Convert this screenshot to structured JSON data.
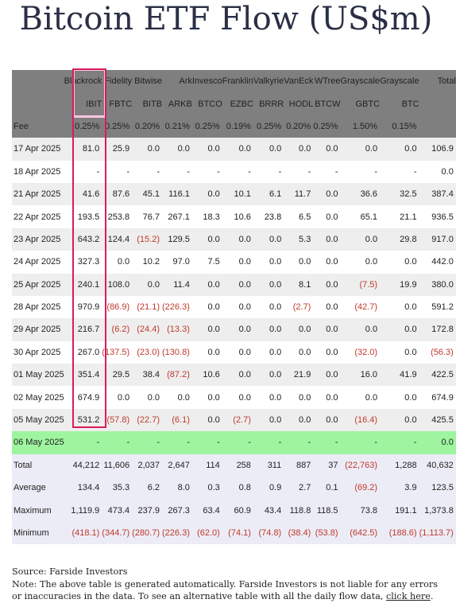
{
  "title": "Bitcoin ETF Flow (US$m)",
  "chart_data": {
    "type": "table",
    "issuers": [
      "Blackrock",
      "Fidelity",
      "Bitwise",
      "Ark",
      "Invesco",
      "Franklin",
      "Valkyrie",
      "VanEck",
      "WTree",
      "Grayscale",
      "Grayscale"
    ],
    "total_header": "Total",
    "tickers": [
      "IBIT",
      "FBTC",
      "BITB",
      "ARKB",
      "BTCO",
      "EZBC",
      "BRRR",
      "HODL",
      "BTCW",
      "GBTC",
      "BTC"
    ],
    "fee_label": "Fee",
    "fees": [
      "0.25%",
      "0.25%",
      "0.20%",
      "0.21%",
      "0.25%",
      "0.19%",
      "0.25%",
      "0.20%",
      "0.25%",
      "1.50%",
      "0.15%"
    ],
    "rows": [
      {
        "date": "17 Apr 2025",
        "values": [
          "81.0",
          "25.9",
          "0.0",
          "0.0",
          "0.0",
          "0.0",
          "0.0",
          "0.0",
          "0.0",
          "0.0",
          "0.0"
        ],
        "total": "106.9"
      },
      {
        "date": "18 Apr 2025",
        "values": [
          "-",
          "-",
          "-",
          "-",
          "-",
          "-",
          "-",
          "-",
          "-",
          "-",
          "-"
        ],
        "total": "0.0"
      },
      {
        "date": "21 Apr 2025",
        "values": [
          "41.6",
          "87.6",
          "45.1",
          "116.1",
          "0.0",
          "10.1",
          "6.1",
          "11.7",
          "0.0",
          "36.6",
          "32.5"
        ],
        "total": "387.4"
      },
      {
        "date": "22 Apr 2025",
        "values": [
          "193.5",
          "253.8",
          "76.7",
          "267.1",
          "18.3",
          "10.6",
          "23.8",
          "6.5",
          "0.0",
          "65.1",
          "21.1"
        ],
        "total": "936.5"
      },
      {
        "date": "23 Apr 2025",
        "values": [
          "643.2",
          "124.4",
          "(15.2)",
          "129.5",
          "0.0",
          "0.0",
          "0.0",
          "5.3",
          "0.0",
          "0.0",
          "29.8"
        ],
        "total": "917.0"
      },
      {
        "date": "24 Apr 2025",
        "values": [
          "327.3",
          "0.0",
          "10.2",
          "97.0",
          "7.5",
          "0.0",
          "0.0",
          "0.0",
          "0.0",
          "0.0",
          "0.0"
        ],
        "total": "442.0"
      },
      {
        "date": "25 Apr 2025",
        "values": [
          "240.1",
          "108.0",
          "0.0",
          "11.4",
          "0.0",
          "0.0",
          "0.0",
          "8.1",
          "0.0",
          "(7.5)",
          "19.9"
        ],
        "total": "380.0"
      },
      {
        "date": "28 Apr 2025",
        "values": [
          "970.9",
          "(86.9)",
          "(21.1)",
          "(226.3)",
          "0.0",
          "0.0",
          "0.0",
          "(2.7)",
          "0.0",
          "(42.7)",
          "0.0"
        ],
        "total": "591.2"
      },
      {
        "date": "29 Apr 2025",
        "values": [
          "216.7",
          "(6.2)",
          "(24.4)",
          "(13.3)",
          "0.0",
          "0.0",
          "0.0",
          "0.0",
          "0.0",
          "0.0",
          "0.0"
        ],
        "total": "172.8"
      },
      {
        "date": "30 Apr 2025",
        "values": [
          "267.0",
          "(137.5)",
          "(23.0)",
          "(130.8)",
          "0.0",
          "0.0",
          "0.0",
          "0.0",
          "0.0",
          "(32.0)",
          "0.0"
        ],
        "total": "(56.3)"
      },
      {
        "date": "01 May 2025",
        "values": [
          "351.4",
          "29.5",
          "38.4",
          "(87.2)",
          "10.6",
          "0.0",
          "0.0",
          "21.9",
          "0.0",
          "16.0",
          "41.9"
        ],
        "total": "422.5"
      },
      {
        "date": "02 May 2025",
        "values": [
          "674.9",
          "0.0",
          "0.0",
          "0.0",
          "0.0",
          "0.0",
          "0.0",
          "0.0",
          "0.0",
          "0.0",
          "0.0"
        ],
        "total": "674.9"
      },
      {
        "date": "05 May 2025",
        "values": [
          "531.2",
          "(57.8)",
          "(22.7)",
          "(6.1)",
          "0.0",
          "(2.7)",
          "0.0",
          "0.0",
          "0.0",
          "(16.4)",
          "0.0"
        ],
        "total": "425.5"
      },
      {
        "date": "06 May 2025",
        "values": [
          "-",
          "-",
          "-",
          "-",
          "-",
          "-",
          "-",
          "-",
          "-",
          "-",
          "-"
        ],
        "total": "0.0",
        "highlight": true
      }
    ],
    "summary": [
      {
        "label": "Total",
        "values": [
          "44,212",
          "11,606",
          "2,037",
          "2,647",
          "114",
          "258",
          "311",
          "887",
          "37",
          "(22,763)",
          "1,288"
        ],
        "total": "40,632"
      },
      {
        "label": "Average",
        "values": [
          "134.4",
          "35.3",
          "6.2",
          "8.0",
          "0.3",
          "0.8",
          "0.9",
          "2.7",
          "0.1",
          "(69.2)",
          "3.9"
        ],
        "total": "123.5"
      },
      {
        "label": "Maximum",
        "values": [
          "1,119.9",
          "473.4",
          "237.9",
          "267.3",
          "63.4",
          "60.9",
          "43.4",
          "118.8",
          "118.5",
          "73.8",
          "191.1"
        ],
        "total": "1,373.8"
      },
      {
        "label": "Minimum",
        "values": [
          "(418.1)",
          "(344.7)",
          "(280.7)",
          "(226.3)",
          "(62.0)",
          "(74.1)",
          "(74.8)",
          "(38.4)",
          "(53.8)",
          "(642.5)",
          "(188.6)"
        ],
        "total": "(1,113.7)"
      }
    ],
    "negative_color": "#c0392b",
    "highlight_color": "#9ff59f",
    "header_color": "#7f7f7f",
    "box_color": "#d81b60"
  },
  "footnote": {
    "source": "Source: Farside Investors",
    "note": "Note: The above table is generated automatically. Farside Investors is not liable for any errors or inaccuracies in the data. To see an alternative table with all the daily flow data, ",
    "link_text": "click here",
    "end": "."
  }
}
